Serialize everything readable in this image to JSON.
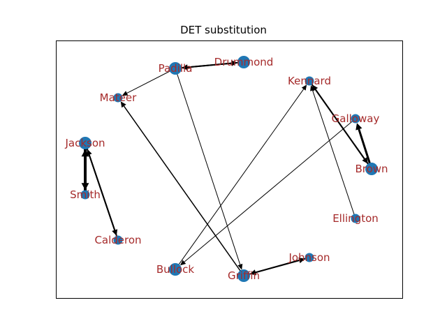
{
  "title": "DET substitution",
  "colors": {
    "node": "#1f77b4",
    "label": "#a52a2a",
    "edge": "#000000",
    "frame": "#000000"
  },
  "nodes": [
    {
      "id": "padilla",
      "label": "Padilla",
      "size": "large"
    },
    {
      "id": "drummond",
      "label": "Drummond",
      "size": "large"
    },
    {
      "id": "mateer",
      "label": "Mateer",
      "size": "small"
    },
    {
      "id": "kennard",
      "label": "Kennard",
      "size": "small"
    },
    {
      "id": "galloway",
      "label": "Galloway",
      "size": "small"
    },
    {
      "id": "jackson",
      "label": "Jackson",
      "size": "large"
    },
    {
      "id": "brown",
      "label": "Brown",
      "size": "large"
    },
    {
      "id": "smith",
      "label": "Smith",
      "size": "small"
    },
    {
      "id": "ellington",
      "label": "Ellington",
      "size": "small"
    },
    {
      "id": "calderon",
      "label": "Calderon",
      "size": "small"
    },
    {
      "id": "johnson",
      "label": "Johnson",
      "size": "small"
    },
    {
      "id": "bullock",
      "label": "Bullock",
      "size": "large"
    },
    {
      "id": "griffin",
      "label": "Griffin",
      "size": "large"
    }
  ],
  "edges": [
    {
      "from": "padilla",
      "to": "drummond",
      "weight": 2
    },
    {
      "from": "drummond",
      "to": "padilla",
      "weight": 2
    },
    {
      "from": "padilla",
      "to": "mateer",
      "weight": 1
    },
    {
      "from": "padilla",
      "to": "griffin",
      "weight": 1
    },
    {
      "from": "griffin",
      "to": "mateer",
      "weight": 1.5
    },
    {
      "from": "bullock",
      "to": "kennard",
      "weight": 1
    },
    {
      "from": "galloway",
      "to": "bullock",
      "weight": 1
    },
    {
      "from": "ellington",
      "to": "kennard",
      "weight": 1
    },
    {
      "from": "brown",
      "to": "kennard",
      "weight": 2
    },
    {
      "from": "kennard",
      "to": "brown",
      "weight": 2
    },
    {
      "from": "brown",
      "to": "galloway",
      "weight": 3
    },
    {
      "from": "jackson",
      "to": "smith",
      "weight": 4
    },
    {
      "from": "smith",
      "to": "jackson",
      "weight": 4
    },
    {
      "from": "jackson",
      "to": "calderon",
      "weight": 2
    },
    {
      "from": "calderon",
      "to": "jackson",
      "weight": 2
    },
    {
      "from": "griffin",
      "to": "johnson",
      "weight": 2
    },
    {
      "from": "johnson",
      "to": "griffin",
      "weight": 2
    }
  ]
}
